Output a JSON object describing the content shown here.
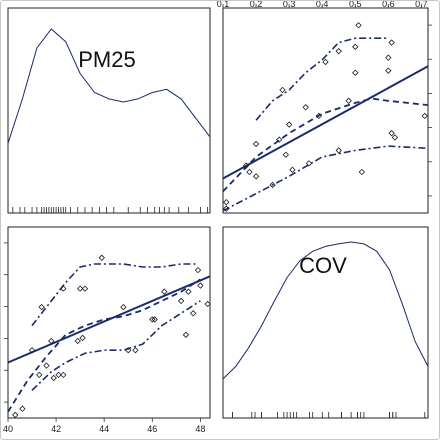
{
  "chart_data": [
    {
      "type": "density",
      "panel": "top-left",
      "label": "PM25",
      "x": [
        40.0,
        40.6,
        41.2,
        41.8,
        42.4,
        43.0,
        43.6,
        44.2,
        44.8,
        45.4,
        46.0,
        46.6,
        47.2,
        47.8,
        48.4
      ],
      "density": [
        0.02,
        0.09,
        0.17,
        0.2,
        0.18,
        0.13,
        0.1,
        0.09,
        0.085,
        0.09,
        0.1,
        0.105,
        0.09,
        0.06,
        0.03
      ],
      "rug": [
        40.2,
        40.5,
        40.7,
        41.0,
        41.2,
        41.4,
        41.5,
        41.6,
        41.7,
        41.8,
        41.9,
        42.0,
        42.1,
        42.2,
        42.3,
        42.4,
        42.6,
        42.9,
        43.2,
        43.5,
        43.8,
        44.1,
        44.4,
        45.0,
        45.5,
        45.8,
        46.1,
        46.3,
        46.5,
        46.7,
        47.1,
        47.5,
        48.0,
        48.3
      ]
    },
    {
      "type": "scatter",
      "panel": "top-right",
      "x_var": "COV",
      "y_var": "PM25",
      "x_ticks": [
        "0.1",
        "0.2",
        "0.3",
        "0.4",
        "0.5",
        "0.6",
        "0.7"
      ],
      "x_tick_values": [
        0.1,
        0.2,
        0.3,
        0.4,
        0.5,
        0.6,
        0.7
      ],
      "xlim": [
        0.1,
        0.72
      ],
      "ylim": [
        39.3,
        48.8
      ],
      "points": [
        [
          0.11,
          39.8
        ],
        [
          0.11,
          39.5
        ],
        [
          0.17,
          41.5
        ],
        [
          0.18,
          41.2
        ],
        [
          0.2,
          42.5
        ],
        [
          0.2,
          41.0
        ],
        [
          0.25,
          40.6
        ],
        [
          0.27,
          42.7
        ],
        [
          0.28,
          45.0
        ],
        [
          0.29,
          42.0
        ],
        [
          0.3,
          43.4
        ],
        [
          0.31,
          41.3
        ],
        [
          0.35,
          44.2
        ],
        [
          0.36,
          41.6
        ],
        [
          0.39,
          43.8
        ],
        [
          0.41,
          46.3
        ],
        [
          0.45,
          46.8
        ],
        [
          0.45,
          42.2
        ],
        [
          0.48,
          44.5
        ],
        [
          0.5,
          47.0
        ],
        [
          0.5,
          45.8
        ],
        [
          0.51,
          48.0
        ],
        [
          0.52,
          41.2
        ],
        [
          0.6,
          45.9
        ],
        [
          0.6,
          46.5
        ],
        [
          0.61,
          47.2
        ],
        [
          0.61,
          43.0
        ],
        [
          0.62,
          42.8
        ],
        [
          0.71,
          43.8
        ]
      ],
      "fit": [
        [
          0.1,
          40.9
        ],
        [
          0.72,
          46.1
        ]
      ],
      "smooth": [
        [
          0.1,
          40.3
        ],
        [
          0.2,
          41.9
        ],
        [
          0.3,
          43.0
        ],
        [
          0.4,
          43.9
        ],
        [
          0.5,
          44.4
        ],
        [
          0.55,
          44.6
        ],
        [
          0.6,
          44.5
        ],
        [
          0.72,
          44.3
        ]
      ],
      "spread_upper": [
        [
          0.2,
          43.6
        ],
        [
          0.25,
          44.5
        ],
        [
          0.3,
          45.0
        ],
        [
          0.35,
          45.8
        ],
        [
          0.4,
          46.4
        ],
        [
          0.45,
          47.2
        ],
        [
          0.5,
          47.4
        ],
        [
          0.6,
          47.4
        ]
      ],
      "spread_lower": [
        [
          0.1,
          39.4
        ],
        [
          0.2,
          40.2
        ],
        [
          0.3,
          41.0
        ],
        [
          0.4,
          41.9
        ],
        [
          0.5,
          42.2
        ],
        [
          0.6,
          42.4
        ],
        [
          0.72,
          42.3
        ]
      ]
    },
    {
      "type": "scatter",
      "panel": "bottom-left",
      "x_var": "PM25",
      "y_var": "COV",
      "x_ticks": [
        "40",
        "42",
        "44",
        "46",
        "48"
      ],
      "x_tick_values": [
        40,
        42,
        44,
        46,
        48
      ],
      "xlim": [
        40.0,
        48.4
      ],
      "ylim": [
        0.1,
        0.72
      ],
      "points": [
        [
          40.3,
          0.11
        ],
        [
          40.6,
          0.13
        ],
        [
          41.0,
          0.32
        ],
        [
          41.3,
          0.24
        ],
        [
          41.4,
          0.46
        ],
        [
          41.6,
          0.27
        ],
        [
          41.8,
          0.35
        ],
        [
          41.9,
          0.23
        ],
        [
          42.1,
          0.24
        ],
        [
          42.3,
          0.52
        ],
        [
          42.3,
          0.24
        ],
        [
          42.9,
          0.35
        ],
        [
          43.0,
          0.52
        ],
        [
          43.1,
          0.36
        ],
        [
          43.2,
          0.52
        ],
        [
          43.9,
          0.62
        ],
        [
          44.8,
          0.46
        ],
        [
          45.0,
          0.32
        ],
        [
          45.3,
          0.32
        ],
        [
          46.0,
          0.42
        ],
        [
          46.1,
          0.42
        ],
        [
          46.5,
          0.51
        ],
        [
          47.2,
          0.48
        ],
        [
          47.4,
          0.37
        ],
        [
          47.5,
          0.51
        ],
        [
          47.7,
          0.44
        ],
        [
          47.9,
          0.58
        ],
        [
          48.0,
          0.53
        ],
        [
          48.3,
          0.47
        ]
      ],
      "fit": [
        [
          40.0,
          0.28
        ],
        [
          48.4,
          0.56
        ]
      ],
      "smooth": [
        [
          40.0,
          0.12
        ],
        [
          40.8,
          0.22
        ],
        [
          41.6,
          0.3
        ],
        [
          42.4,
          0.37
        ],
        [
          43.2,
          0.4
        ],
        [
          44.0,
          0.42
        ],
        [
          44.8,
          0.43
        ],
        [
          45.6,
          0.45
        ],
        [
          46.4,
          0.48
        ],
        [
          47.2,
          0.51
        ],
        [
          48.0,
          0.55
        ]
      ],
      "spread_upper": [
        [
          41.0,
          0.4
        ],
        [
          41.8,
          0.48
        ],
        [
          42.4,
          0.54
        ],
        [
          43.0,
          0.59
        ],
        [
          43.6,
          0.6
        ],
        [
          44.8,
          0.6
        ],
        [
          45.6,
          0.59
        ],
        [
          46.4,
          0.59
        ],
        [
          47.2,
          0.6
        ],
        [
          47.8,
          0.6
        ]
      ],
      "spread_lower": [
        [
          41.0,
          0.19
        ],
        [
          41.8,
          0.25
        ],
        [
          42.4,
          0.28
        ],
        [
          43.2,
          0.31
        ],
        [
          44.0,
          0.32
        ],
        [
          44.8,
          0.32
        ],
        [
          45.6,
          0.34
        ],
        [
          46.4,
          0.4
        ],
        [
          47.2,
          0.44
        ],
        [
          48.0,
          0.48
        ]
      ]
    },
    {
      "type": "density",
      "panel": "bottom-right",
      "label": "COV",
      "x": [
        0.08,
        0.12,
        0.16,
        0.2,
        0.24,
        0.28,
        0.32,
        0.36,
        0.4,
        0.44,
        0.48,
        0.52,
        0.56,
        0.6,
        0.64,
        0.68,
        0.72
      ],
      "density": [
        0.05,
        0.25,
        0.55,
        0.9,
        1.3,
        1.68,
        1.95,
        2.1,
        2.18,
        2.22,
        2.25,
        2.22,
        2.1,
        1.8,
        1.25,
        0.65,
        0.25
      ],
      "rug": [
        0.11,
        0.11,
        0.17,
        0.18,
        0.2,
        0.2,
        0.25,
        0.27,
        0.28,
        0.29,
        0.3,
        0.31,
        0.35,
        0.36,
        0.39,
        0.41,
        0.45,
        0.45,
        0.48,
        0.5,
        0.5,
        0.51,
        0.52,
        0.6,
        0.6,
        0.61,
        0.61,
        0.62,
        0.71
      ]
    }
  ],
  "colors": {
    "fit": "#1a2a6c",
    "points": "#1a1a1a",
    "axis": "#333333"
  }
}
